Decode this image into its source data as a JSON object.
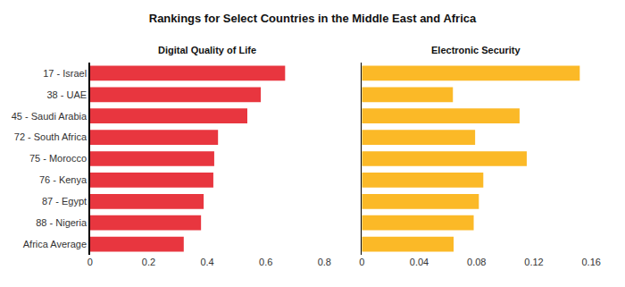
{
  "title": "Rankings for Select Countries in the Middle East and Africa",
  "chart_data": [
    {
      "type": "bar",
      "title": "Digital Quality of Life",
      "orientation": "horizontal",
      "categories": [
        "17 - Israel",
        "38 - UAE",
        "45 - Saudi Arabia",
        "72 - South Africa",
        "75 - Morocco",
        "76 - Kenya",
        "87 - Egypt",
        "88 - Nigeria",
        "Africa Average"
      ],
      "values": [
        0.666,
        0.583,
        0.537,
        0.437,
        0.424,
        0.421,
        0.388,
        0.379,
        0.32
      ],
      "color": "#e8363f",
      "xlim": [
        0,
        0.8
      ],
      "xticks": [
        0,
        0.2,
        0.4,
        0.6,
        0.8
      ],
      "grid": false
    },
    {
      "type": "bar",
      "title": "Electronic Security",
      "orientation": "horizontal",
      "categories": [
        "17 - Israel",
        "38 - UAE",
        "45 - Saudi Arabia",
        "72 - South Africa",
        "75 - Morocco",
        "76 - Kenya",
        "87 - Egypt",
        "88 - Nigeria",
        "Africa Average"
      ],
      "values": [
        0.152,
        0.0635,
        0.11,
        0.079,
        0.115,
        0.0847,
        0.0816,
        0.078,
        0.064
      ],
      "color": "#fbb927",
      "xlim": [
        0,
        0.16
      ],
      "xticks": [
        0,
        0.04,
        0.08,
        0.12,
        0.16
      ],
      "grid": false,
      "tick_labels": "x"
    }
  ]
}
